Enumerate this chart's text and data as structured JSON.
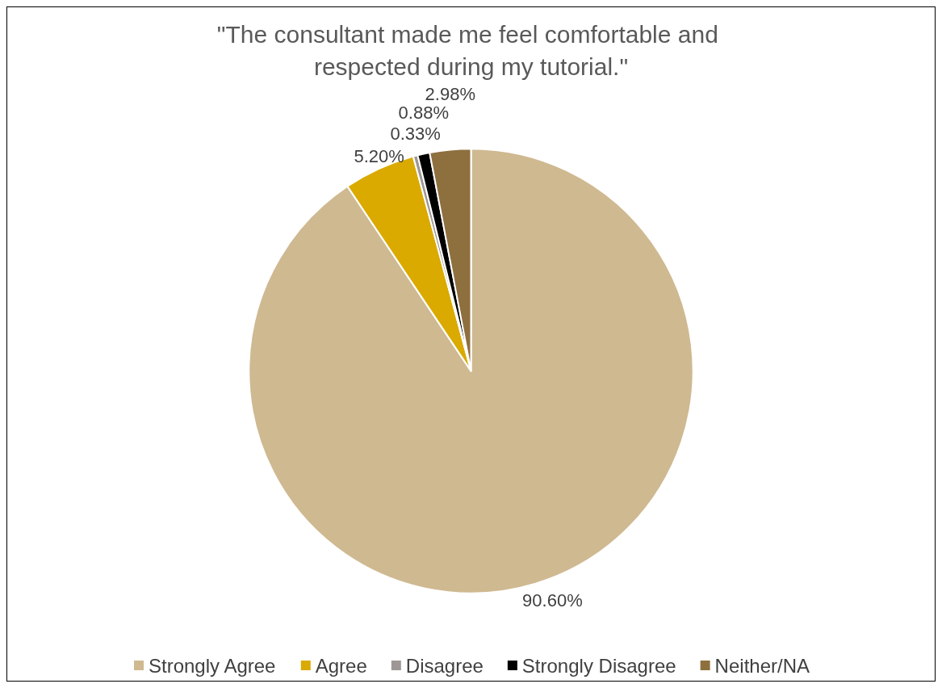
{
  "chart_data": {
    "type": "pie",
    "title": "\"The consultant made me feel comfortable and respected during my tutorial.\"",
    "categories": [
      "Strongly Agree",
      "Agree",
      "Disagree",
      "Strongly Disagree",
      "Neither/NA"
    ],
    "values": [
      90.6,
      5.2,
      0.33,
      0.88,
      2.98
    ],
    "colors": [
      "#cfb991",
      "#daaa00",
      "#9d9795",
      "#000000",
      "#8e6f3e"
    ],
    "value_labels": [
      "90.60%",
      "5.20%",
      "0.33%",
      "0.88%",
      "2.98%"
    ],
    "legend": "bottom"
  }
}
